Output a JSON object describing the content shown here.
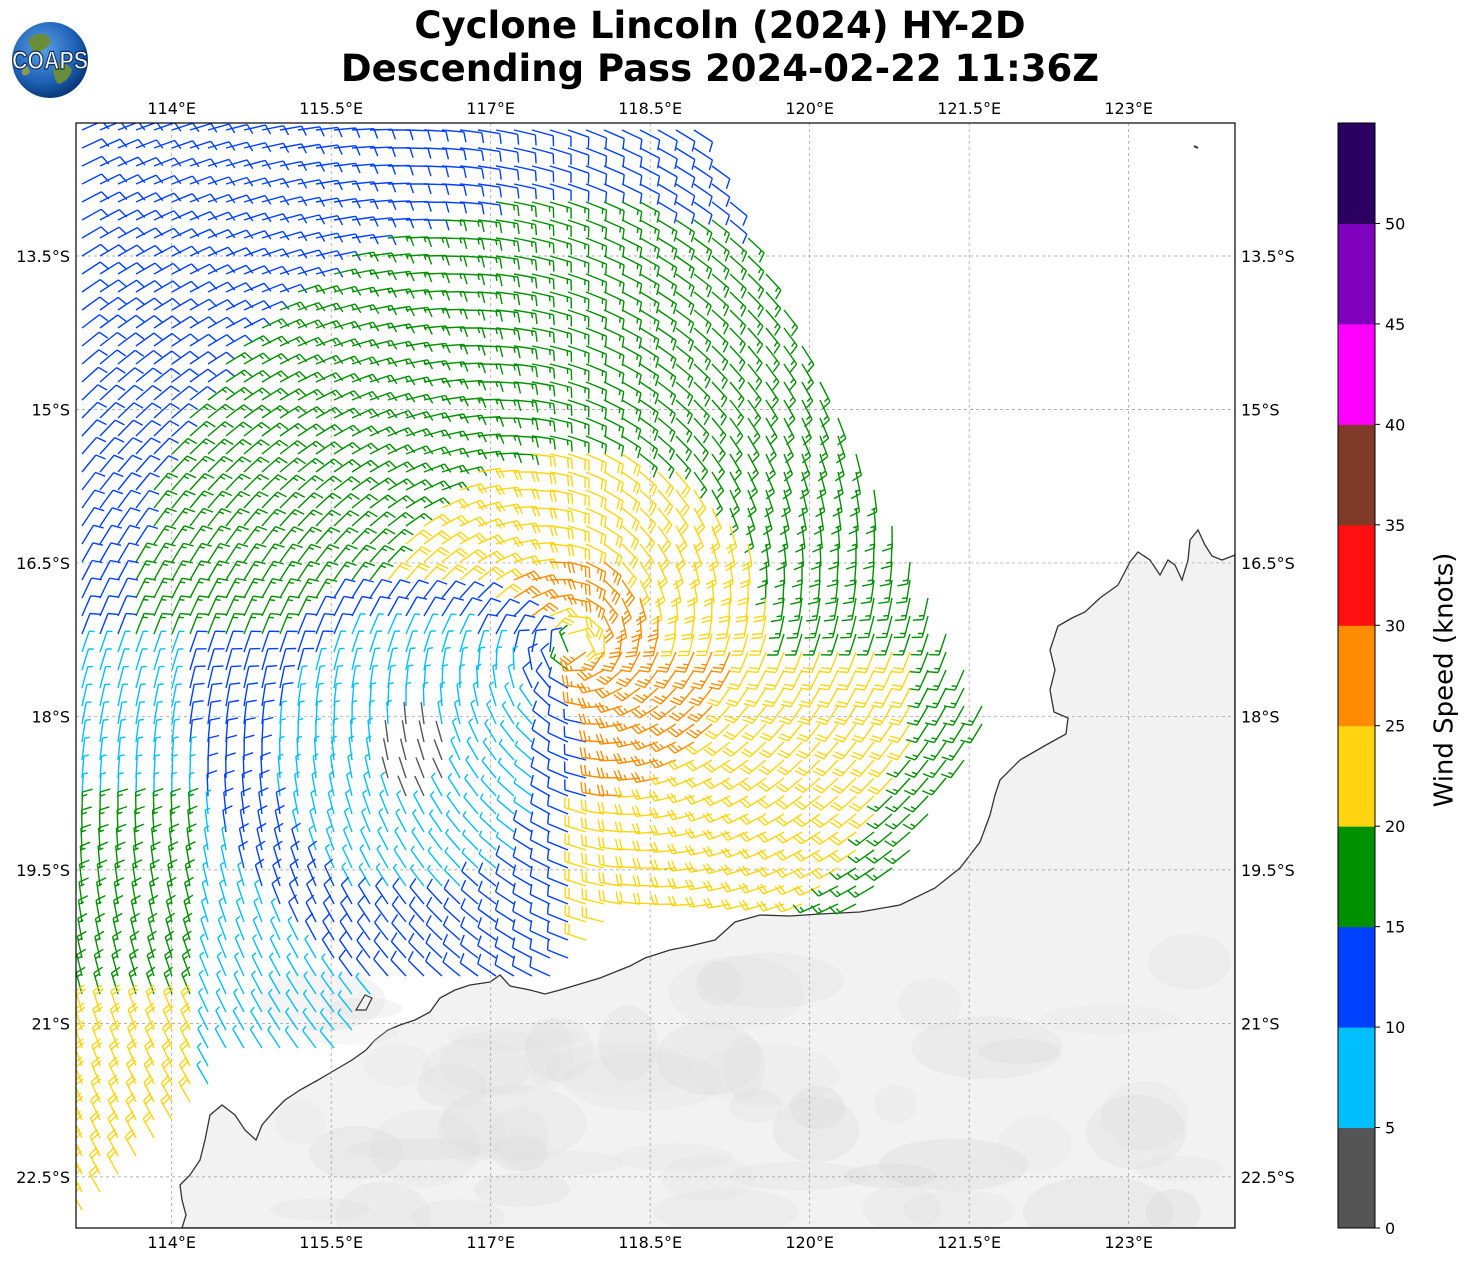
{
  "title": {
    "line1": "Cyclone Lincoln (2024) HY-2D",
    "line2": "Descending Pass 2024-02-22 11:36Z"
  },
  "logo": {
    "text": "COAPS",
    "icon": "globe-logo-icon"
  },
  "map": {
    "extent": {
      "lon_min": 113.1,
      "lon_max": 124.0,
      "lat_min": -23.0,
      "lat_max": -12.2
    },
    "lon_ticks": [
      "114°E",
      "115.5°E",
      "117°E",
      "118.5°E",
      "120°E",
      "121.5°E",
      "123°E"
    ],
    "lon_values": [
      114,
      115.5,
      117,
      118.5,
      120,
      121.5,
      123
    ],
    "lat_ticks": [
      "13.5°S",
      "15°S",
      "16.5°S",
      "18°S",
      "19.5°S",
      "21°S",
      "22.5°S"
    ],
    "lat_values": [
      -13.5,
      -15,
      -16.5,
      -18,
      -19.5,
      -21,
      -22.5
    ],
    "grid": true,
    "cyclone_center": {
      "lon": 117.8,
      "lat": -17.3
    },
    "land_color": "#f2f2f2",
    "coast_color": "#333333"
  },
  "colorbar": {
    "label": "Wind Speed (knots)",
    "tick_labels": [
      "0",
      "5",
      "10",
      "15",
      "20",
      "25",
      "30",
      "35",
      "40",
      "45",
      "50"
    ],
    "bins": [
      {
        "min": 0,
        "max": 5,
        "color": "#555555"
      },
      {
        "min": 5,
        "max": 10,
        "color": "#00bfff"
      },
      {
        "min": 10,
        "max": 15,
        "color": "#0040ff"
      },
      {
        "min": 15,
        "max": 20,
        "color": "#009000"
      },
      {
        "min": 20,
        "max": 25,
        "color": "#ffd510"
      },
      {
        "min": 25,
        "max": 30,
        "color": "#ff8c00"
      },
      {
        "min": 30,
        "max": 35,
        "color": "#ff0f0f"
      },
      {
        "min": 35,
        "max": 40,
        "color": "#7f3a28"
      },
      {
        "min": 40,
        "max": 45,
        "color": "#ff00ff"
      },
      {
        "min": 45,
        "max": 50,
        "color": "#8000c0"
      },
      {
        "min": 50,
        "max": 55,
        "color": "#2a0060"
      }
    ]
  }
}
